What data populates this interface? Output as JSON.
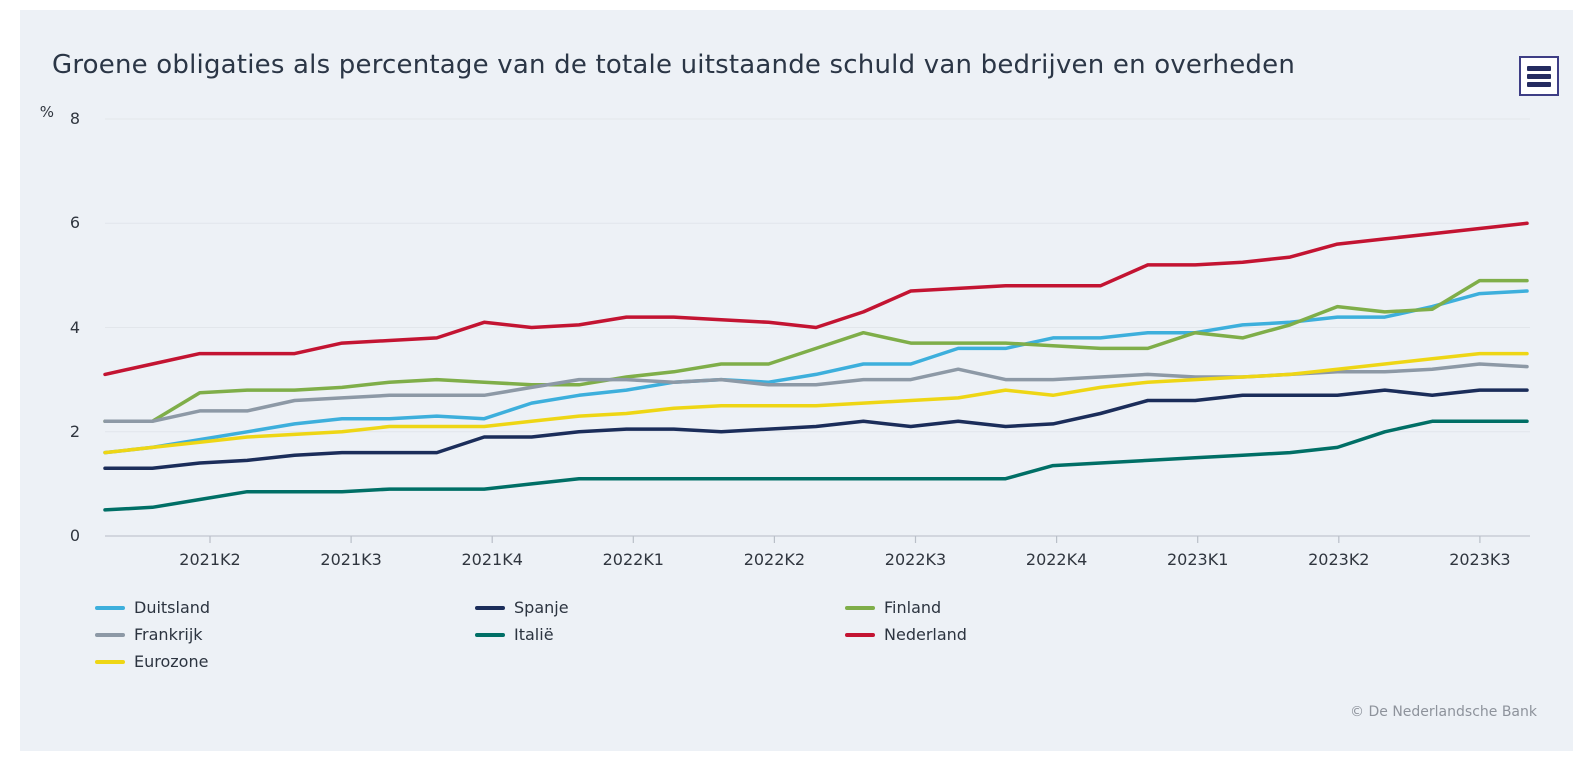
{
  "page": {
    "background": "#ffffff",
    "panel_background": "#edf1f6"
  },
  "header": {
    "title": "Groene obligaties als percentage van de totale uitstaande schuld van bedrijven en overheden",
    "menu_icon": "hamburger-menu-icon"
  },
  "footer": {
    "copyright": "© De Nederlandsche Bank"
  },
  "chart_data": {
    "type": "line",
    "title": "Groene obligaties als percentage van de totale uitstaande schuld van bedrijven en overheden",
    "y_unit": "%",
    "ylabel": "",
    "xlabel": "",
    "ylim": [
      0,
      8
    ],
    "y_ticks": [
      0,
      2,
      4,
      6,
      8
    ],
    "grid": "horizontal",
    "legend_position": "bottom-left",
    "x_tick_labels": [
      "2021K2",
      "2021K3",
      "2021K4",
      "2022K1",
      "2022K2",
      "2022K3",
      "2022K4",
      "2023K1",
      "2023K2",
      "2023K3"
    ],
    "x_note": "monthly data points, Mar 2021 - Sep 2023",
    "series": [
      {
        "name": "Duitsland",
        "color": "#3dafdc",
        "values": [
          1.6,
          1.7,
          1.85,
          2.0,
          2.15,
          2.25,
          2.25,
          2.3,
          2.25,
          2.55,
          2.7,
          2.8,
          2.95,
          3.0,
          2.95,
          3.1,
          3.3,
          3.3,
          3.6,
          3.6,
          3.8,
          3.8,
          3.9,
          3.9,
          4.05,
          4.1,
          4.2,
          4.2,
          4.4,
          4.65,
          4.7
        ]
      },
      {
        "name": "Spanje",
        "color": "#1b2d5a",
        "values": [
          1.3,
          1.3,
          1.4,
          1.45,
          1.55,
          1.6,
          1.6,
          1.6,
          1.9,
          1.9,
          2.0,
          2.05,
          2.05,
          2.0,
          2.05,
          2.1,
          2.2,
          2.1,
          2.2,
          2.1,
          2.15,
          2.35,
          2.6,
          2.6,
          2.7,
          2.7,
          2.7,
          2.8,
          2.7,
          2.8,
          2.8
        ]
      },
      {
        "name": "Finland",
        "color": "#7fae49",
        "values": [
          2.2,
          2.2,
          2.75,
          2.8,
          2.8,
          2.85,
          2.95,
          3.0,
          2.95,
          2.9,
          2.9,
          3.05,
          3.15,
          3.3,
          3.3,
          3.6,
          3.9,
          3.7,
          3.7,
          3.7,
          3.65,
          3.6,
          3.6,
          3.9,
          3.8,
          4.05,
          4.4,
          4.3,
          4.35,
          4.9,
          4.9
        ]
      },
      {
        "name": "Frankrijk",
        "color": "#8d99a6",
        "values": [
          2.2,
          2.2,
          2.4,
          2.4,
          2.6,
          2.65,
          2.7,
          2.7,
          2.7,
          2.85,
          3.0,
          3.0,
          2.95,
          3.0,
          2.9,
          2.9,
          3.0,
          3.0,
          3.2,
          3.0,
          3.0,
          3.05,
          3.1,
          3.05,
          3.05,
          3.1,
          3.15,
          3.15,
          3.2,
          3.3,
          3.25
        ]
      },
      {
        "name": "Italië",
        "color": "#006f66",
        "values": [
          0.5,
          0.55,
          0.7,
          0.85,
          0.85,
          0.85,
          0.9,
          0.9,
          0.9,
          1.0,
          1.1,
          1.1,
          1.1,
          1.1,
          1.1,
          1.1,
          1.1,
          1.1,
          1.1,
          1.1,
          1.35,
          1.4,
          1.45,
          1.5,
          1.55,
          1.6,
          1.7,
          2.0,
          2.2,
          2.2,
          2.2
        ]
      },
      {
        "name": "Nederland",
        "color": "#c31432",
        "values": [
          3.1,
          3.3,
          3.5,
          3.5,
          3.5,
          3.7,
          3.75,
          3.8,
          4.1,
          4.0,
          4.05,
          4.2,
          4.2,
          4.15,
          4.1,
          4.0,
          4.3,
          4.7,
          4.75,
          4.8,
          4.8,
          4.8,
          5.2,
          5.2,
          5.25,
          5.35,
          5.6,
          5.7,
          5.8,
          5.9,
          6.0
        ]
      },
      {
        "name": "Eurozone",
        "color": "#eed615",
        "values": [
          1.6,
          1.7,
          1.8,
          1.9,
          1.95,
          2.0,
          2.1,
          2.1,
          2.1,
          2.2,
          2.3,
          2.35,
          2.45,
          2.5,
          2.5,
          2.5,
          2.55,
          2.6,
          2.65,
          2.8,
          2.7,
          2.85,
          2.95,
          3.0,
          3.05,
          3.1,
          3.2,
          3.3,
          3.4,
          3.5,
          3.5
        ]
      }
    ],
    "colors": {
      "grid_line": "#e2e6eb",
      "axis_line": "#c9ced6",
      "tick_mark": "#b9bfc8"
    }
  }
}
